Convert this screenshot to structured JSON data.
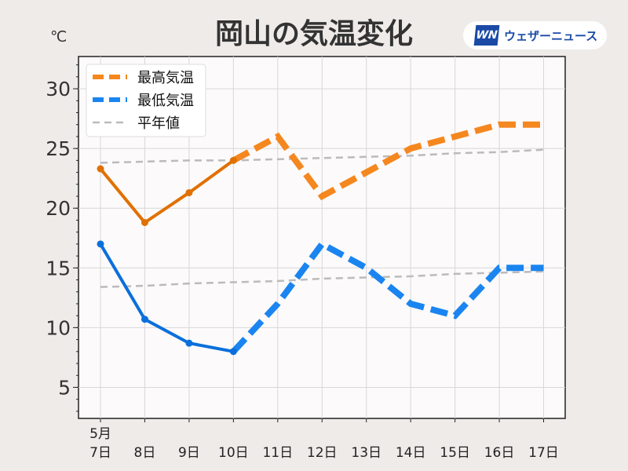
{
  "chart_data": {
    "type": "line",
    "title": "岡山の気温変化",
    "ylabel": "℃",
    "ylim": [
      2.4,
      32.7
    ],
    "yticks": [
      5,
      10,
      15,
      20,
      25,
      30
    ],
    "x": [
      7,
      8,
      9,
      10,
      11,
      12,
      13,
      14,
      15,
      16,
      17
    ],
    "xtick_labels": [
      "7日",
      "8日",
      "9日",
      "10日",
      "11日",
      "12日",
      "13日",
      "14日",
      "15日",
      "16日",
      "17日"
    ],
    "month_label": "5月",
    "observed_until_index": 3,
    "series": [
      {
        "name": "最高気温",
        "color": "#e07000",
        "forecast_color": "#f5871f",
        "values": [
          23.3,
          18.8,
          21.3,
          24.0,
          26,
          21,
          23,
          25,
          26,
          27,
          27
        ]
      },
      {
        "name": "最低気温",
        "color": "#0a6fdc",
        "forecast_color": "#1a85f0",
        "values": [
          17.0,
          10.7,
          8.7,
          8.0,
          12,
          17,
          15,
          12,
          11,
          15,
          15
        ]
      },
      {
        "name": "平年値",
        "color": "#bbbbbb",
        "values_high": [
          23.8,
          23.9,
          24.0,
          24.0,
          24.1,
          24.2,
          24.3,
          24.4,
          24.6,
          24.7,
          24.9
        ],
        "values_low": [
          13.4,
          13.5,
          13.7,
          13.8,
          13.9,
          14.1,
          14.2,
          14.3,
          14.5,
          14.6,
          14.7
        ]
      }
    ],
    "legend": "top-left",
    "grid": true
  },
  "logo": {
    "mark": "WN",
    "text": "ウェザーニュース"
  }
}
